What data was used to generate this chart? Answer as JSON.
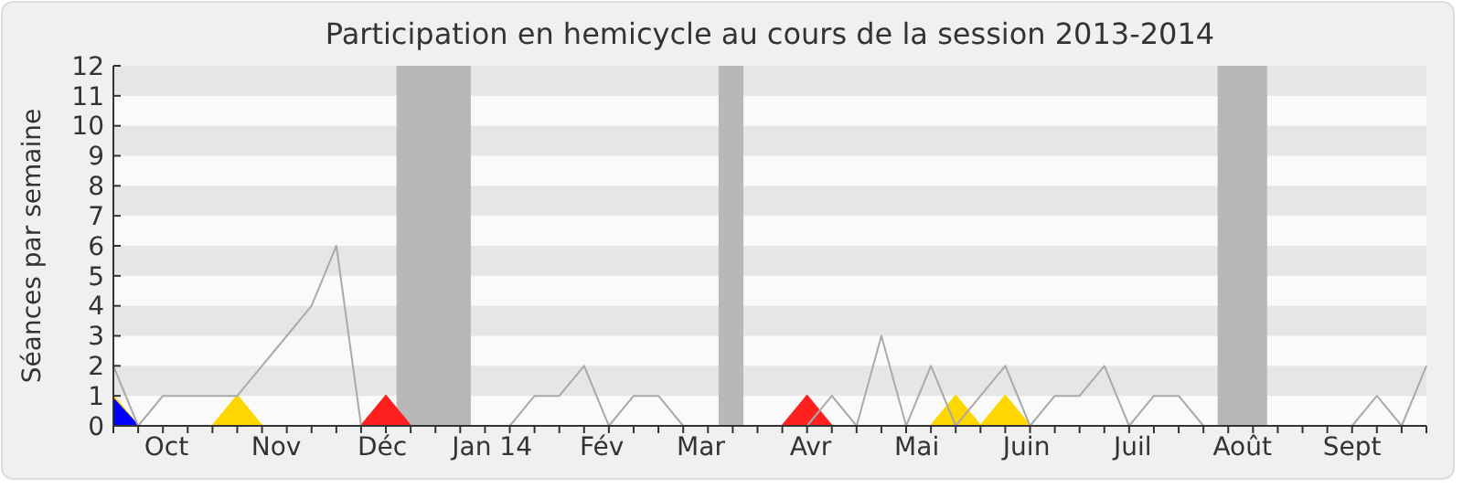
{
  "chart_data": {
    "type": "line",
    "title": "Participation en hemicycle au cours de la session 2013-2014",
    "ylabel": "Séances par semaine",
    "x": [
      "2013-09-30",
      "2013-10-07",
      "2013-10-14",
      "2013-10-21",
      "2013-10-28",
      "2013-11-04",
      "2013-11-11",
      "2013-11-18",
      "2013-11-25",
      "2013-12-02",
      "2013-12-09",
      "2013-12-16",
      "2013-12-23",
      "2013-12-30",
      "2014-01-06",
      "2014-01-13",
      "2014-01-20",
      "2014-01-27",
      "2014-02-03",
      "2014-02-10",
      "2014-02-17",
      "2014-02-24",
      "2014-03-03",
      "2014-03-10",
      "2014-03-17",
      "2014-03-24",
      "2014-03-31",
      "2014-04-07",
      "2014-04-14",
      "2014-04-21",
      "2014-04-28",
      "2014-05-05",
      "2014-05-12",
      "2014-05-19",
      "2014-05-26",
      "2014-06-02",
      "2014-06-09",
      "2014-06-16",
      "2014-06-23",
      "2014-06-30",
      "2014-07-07",
      "2014-07-14",
      "2014-07-21",
      "2014-07-28",
      "2014-08-04",
      "2014-08-11",
      "2014-08-18",
      "2014-08-25",
      "2014-09-01",
      "2014-09-08",
      "2014-09-15",
      "2014-09-22",
      "2014-09-29",
      "2014-10-06"
    ],
    "xlim": [
      "2013-09-30",
      "2014-10-06"
    ],
    "xticks": [
      {
        "value": "2013-10-15",
        "label": "Oct"
      },
      {
        "value": "2013-11-15",
        "label": "Nov"
      },
      {
        "value": "2013-12-15",
        "label": "Déc"
      },
      {
        "value": "2014-01-15",
        "label": "Jan 14"
      },
      {
        "value": "2014-02-15",
        "label": "Fév"
      },
      {
        "value": "2014-03-15",
        "label": "Mar"
      },
      {
        "value": "2014-04-15",
        "label": "Avr"
      },
      {
        "value": "2014-05-15",
        "label": "Mai"
      },
      {
        "value": "2014-06-15",
        "label": "Juin"
      },
      {
        "value": "2014-07-15",
        "label": "Juil"
      },
      {
        "value": "2014-08-15",
        "label": "Août"
      },
      {
        "value": "2014-09-15",
        "label": "Sept"
      },
      {
        "value": "2013-09-30",
        "label": null
      },
      {
        "value": "2013-10-07",
        "label": null
      },
      {
        "value": "2013-10-14",
        "label": null
      },
      {
        "value": "2013-10-21",
        "label": null
      },
      {
        "value": "2013-10-28",
        "label": null
      },
      {
        "value": "2013-11-04",
        "label": null
      },
      {
        "value": "2013-11-11",
        "label": null
      },
      {
        "value": "2013-11-18",
        "label": null
      },
      {
        "value": "2013-11-25",
        "label": null
      },
      {
        "value": "2013-12-02",
        "label": null
      },
      {
        "value": "2013-12-09",
        "label": null
      },
      {
        "value": "2013-12-16",
        "label": null
      },
      {
        "value": "2013-12-23",
        "label": null
      },
      {
        "value": "2013-12-30",
        "label": null
      },
      {
        "value": "2014-01-06",
        "label": null
      },
      {
        "value": "2014-01-13",
        "label": null
      },
      {
        "value": "2014-01-20",
        "label": null
      },
      {
        "value": "2014-01-27",
        "label": null
      },
      {
        "value": "2014-02-03",
        "label": null
      },
      {
        "value": "2014-02-10",
        "label": null
      },
      {
        "value": "2014-02-17",
        "label": null
      },
      {
        "value": "2014-02-24",
        "label": null
      },
      {
        "value": "2014-03-03",
        "label": null
      },
      {
        "value": "2014-03-10",
        "label": null
      },
      {
        "value": "2014-03-17",
        "label": null
      },
      {
        "value": "2014-03-24",
        "label": null
      },
      {
        "value": "2014-03-31",
        "label": null
      },
      {
        "value": "2014-04-07",
        "label": null
      },
      {
        "value": "2014-04-14",
        "label": null
      },
      {
        "value": "2014-04-21",
        "label": null
      },
      {
        "value": "2014-04-28",
        "label": null
      },
      {
        "value": "2014-05-05",
        "label": null
      },
      {
        "value": "2014-05-12",
        "label": null
      },
      {
        "value": "2014-05-19",
        "label": null
      },
      {
        "value": "2014-05-26",
        "label": null
      },
      {
        "value": "2014-06-02",
        "label": null
      },
      {
        "value": "2014-06-09",
        "label": null
      },
      {
        "value": "2014-06-16",
        "label": null
      },
      {
        "value": "2014-06-23",
        "label": null
      },
      {
        "value": "2014-06-30",
        "label": null
      },
      {
        "value": "2014-07-07",
        "label": null
      },
      {
        "value": "2014-07-14",
        "label": null
      },
      {
        "value": "2014-07-21",
        "label": null
      },
      {
        "value": "2014-07-28",
        "label": null
      },
      {
        "value": "2014-08-04",
        "label": null
      },
      {
        "value": "2014-08-11",
        "label": null
      },
      {
        "value": "2014-08-18",
        "label": null
      },
      {
        "value": "2014-08-25",
        "label": null
      },
      {
        "value": "2014-09-01",
        "label": null
      },
      {
        "value": "2014-09-08",
        "label": null
      },
      {
        "value": "2014-09-15",
        "label": null
      },
      {
        "value": "2014-09-22",
        "label": null
      },
      {
        "value": "2014-09-29",
        "label": null
      },
      {
        "value": "2014-10-06",
        "label": null
      }
    ],
    "ylim": [
      0,
      12
    ],
    "yticks": [
      0,
      1,
      2,
      3,
      4,
      5,
      6,
      7,
      8,
      9,
      10,
      11,
      12
    ],
    "marker": "none",
    "bands": [
      {
        "axis": "x",
        "from": "2013-12-19",
        "to": "2014-01-09",
        "color": "#b8b8b8"
      },
      {
        "axis": "x",
        "from": "2014-03-20",
        "to": "2014-03-27",
        "color": "#b8b8b8"
      },
      {
        "axis": "x",
        "from": "2014-08-08",
        "to": "2014-08-22",
        "color": "#b8b8b8"
      },
      {
        "axis": "y",
        "from": 1,
        "to": 2,
        "color": "#e6e6e6"
      },
      {
        "axis": "y",
        "from": 3,
        "to": 4,
        "color": "#e6e6e6"
      },
      {
        "axis": "y",
        "from": 5,
        "to": 6,
        "color": "#e6e6e6"
      },
      {
        "axis": "y",
        "from": 7,
        "to": 8,
        "color": "#e6e6e6"
      },
      {
        "axis": "y",
        "from": 9,
        "to": 10,
        "color": "#e6e6e6"
      },
      {
        "axis": "y",
        "from": 11,
        "to": 12,
        "color": "#e6e6e6"
      }
    ],
    "series": [
      {
        "type": "area",
        "color": "#ffd700",
        "values": [
          1,
          0,
          null,
          null,
          0,
          1,
          0,
          null,
          null,
          null,
          null,
          null,
          null,
          null,
          null,
          null,
          null,
          null,
          null,
          null,
          null,
          null,
          null,
          null,
          null,
          null,
          null,
          null,
          null,
          null,
          null,
          null,
          null,
          0,
          1,
          0,
          1,
          0,
          null,
          null,
          null,
          null,
          null,
          null,
          null,
          null,
          null,
          null,
          null,
          null,
          null,
          null,
          null,
          null
        ]
      },
      {
        "type": "area",
        "color": "#ff2020",
        "values": [
          null,
          null,
          null,
          null,
          null,
          null,
          null,
          null,
          null,
          null,
          0,
          1,
          0,
          null,
          null,
          null,
          null,
          null,
          null,
          null,
          null,
          null,
          null,
          null,
          null,
          null,
          null,
          0,
          1,
          0,
          null,
          null,
          null,
          null,
          null,
          null,
          null,
          null,
          null,
          null,
          null,
          null,
          null,
          null,
          null,
          null,
          null,
          null,
          null,
          null,
          null,
          null,
          null,
          null
        ]
      },
      {
        "type": "area",
        "color": "#0000ff",
        "values": [
          0.9,
          0,
          null,
          null,
          null,
          null,
          null,
          null,
          null,
          null,
          null,
          null,
          null,
          null,
          null,
          null,
          null,
          null,
          null,
          null,
          null,
          null,
          null,
          null,
          null,
          null,
          null,
          null,
          null,
          null,
          null,
          null,
          null,
          null,
          null,
          null,
          null,
          null,
          null,
          null,
          null,
          null,
          null,
          null,
          null,
          null,
          null,
          null,
          null,
          null,
          null,
          null,
          null,
          null
        ]
      },
      {
        "color": "#aaaaaa",
        "values": [
          2,
          0,
          1,
          1,
          1,
          1,
          2,
          3,
          4,
          6,
          0,
          0,
          0,
          0,
          0,
          0,
          0,
          1,
          1,
          2,
          0,
          1,
          1,
          0,
          0,
          0,
          0,
          0,
          0,
          1,
          0,
          3,
          0,
          2,
          0,
          1,
          2,
          0,
          1,
          1,
          2,
          0,
          1,
          1,
          0,
          0,
          0,
          0,
          0,
          0,
          0,
          1,
          0,
          2
        ]
      }
    ]
  }
}
